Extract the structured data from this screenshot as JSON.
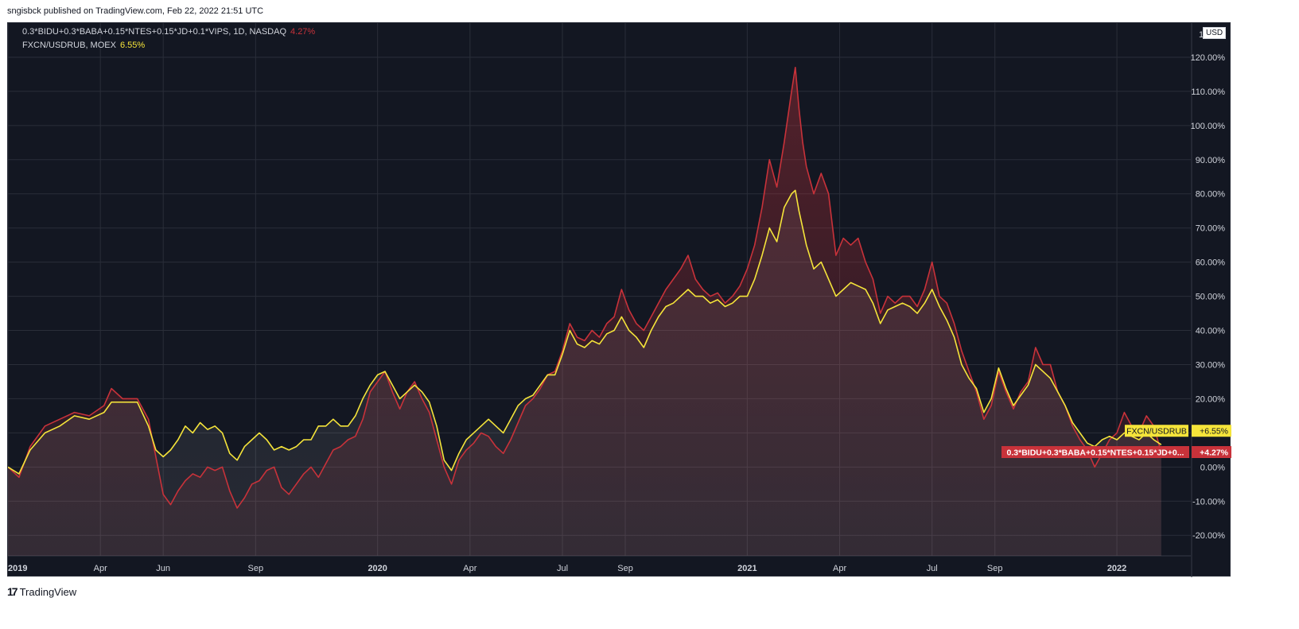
{
  "header": {
    "published_text": "sngisbck published on TradingView.com, Feb 22, 2022 21:51 UTC"
  },
  "legend": [
    {
      "label": "0.3*BIDU+0.3*BABA+0.15*NTES+0.15*JD+0.1*VIPS, 1D, NASDAQ",
      "value": "4.27%",
      "color": "#c8323a"
    },
    {
      "label": "FXCN/USDRUB, MOEX",
      "value": "6.55%",
      "color": "#f5e43a"
    }
  ],
  "price_axis": {
    "currency_button": "USD",
    "top_label": "1",
    "top_label_suffix": "%",
    "ticks": [
      "120.00%",
      "110.00%",
      "100.00%",
      "90.00%",
      "80.00%",
      "70.00%",
      "60.00%",
      "50.00%",
      "40.00%",
      "30.00%",
      "20.00%",
      "10.00%",
      "0.00%",
      "-10.00%",
      "-20.00%"
    ],
    "tick_values": [
      120,
      110,
      100,
      90,
      80,
      70,
      60,
      50,
      40,
      30,
      20,
      10,
      0,
      -10,
      -20
    ]
  },
  "badges": [
    {
      "name": "FXCN/USDRUB",
      "value": "+6.55%"
    },
    {
      "name": "0.3*BIDU+0.3*BABA+0.15*NTES+0.15*JD+0...",
      "value": "+4.27%"
    }
  ],
  "footer": {
    "brand": "TradingView",
    "logo_mark": "17"
  },
  "chart_data": {
    "type": "line",
    "ylabel_unit": "%",
    "ylim": [
      -26,
      130
    ],
    "x_ticks": [
      {
        "label": "2019",
        "t": 0.0,
        "bold": true
      },
      {
        "label": "Apr",
        "t": 0.25
      },
      {
        "label": "Jun",
        "t": 0.42
      },
      {
        "label": "Sep",
        "t": 0.67
      },
      {
        "label": "2020",
        "t": 1.0,
        "bold": true
      },
      {
        "label": "Apr",
        "t": 1.25
      },
      {
        "label": "Jul",
        "t": 1.5
      },
      {
        "label": "Sep",
        "t": 1.67
      },
      {
        "label": "2021",
        "t": 2.0,
        "bold": true
      },
      {
        "label": "Apr",
        "t": 2.25
      },
      {
        "label": "Jul",
        "t": 2.5
      },
      {
        "label": "Sep",
        "t": 2.67
      },
      {
        "label": "2022",
        "t": 3.0,
        "bold": true
      }
    ],
    "x_range": [
      0.0,
      3.2
    ],
    "series": [
      {
        "name": "0.3*BIDU+0.3*BABA+0.15*NTES+0.15*JD+0.1*VIPS",
        "color": "#c8323a",
        "points": [
          [
            0.0,
            0
          ],
          [
            0.03,
            -3
          ],
          [
            0.06,
            6
          ],
          [
            0.1,
            12
          ],
          [
            0.14,
            14
          ],
          [
            0.18,
            16
          ],
          [
            0.22,
            15
          ],
          [
            0.26,
            18
          ],
          [
            0.28,
            23
          ],
          [
            0.31,
            20
          ],
          [
            0.35,
            20
          ],
          [
            0.38,
            14
          ],
          [
            0.4,
            3
          ],
          [
            0.42,
            -8
          ],
          [
            0.44,
            -11
          ],
          [
            0.46,
            -7
          ],
          [
            0.48,
            -4
          ],
          [
            0.5,
            -2
          ],
          [
            0.52,
            -3
          ],
          [
            0.54,
            0
          ],
          [
            0.56,
            -1
          ],
          [
            0.58,
            0
          ],
          [
            0.6,
            -7
          ],
          [
            0.62,
            -12
          ],
          [
            0.64,
            -9
          ],
          [
            0.66,
            -5
          ],
          [
            0.68,
            -4
          ],
          [
            0.7,
            -1
          ],
          [
            0.72,
            0
          ],
          [
            0.74,
            -6
          ],
          [
            0.76,
            -8
          ],
          [
            0.78,
            -5
          ],
          [
            0.8,
            -2
          ],
          [
            0.82,
            0
          ],
          [
            0.84,
            -3
          ],
          [
            0.86,
            1
          ],
          [
            0.88,
            5
          ],
          [
            0.9,
            6
          ],
          [
            0.92,
            8
          ],
          [
            0.94,
            9
          ],
          [
            0.96,
            14
          ],
          [
            0.98,
            22
          ],
          [
            1.0,
            25
          ],
          [
            1.02,
            28
          ],
          [
            1.04,
            22
          ],
          [
            1.06,
            17
          ],
          [
            1.08,
            22
          ],
          [
            1.1,
            25
          ],
          [
            1.12,
            20
          ],
          [
            1.14,
            16
          ],
          [
            1.16,
            8
          ],
          [
            1.18,
            0
          ],
          [
            1.2,
            -5
          ],
          [
            1.22,
            2
          ],
          [
            1.24,
            5
          ],
          [
            1.26,
            7
          ],
          [
            1.28,
            10
          ],
          [
            1.3,
            9
          ],
          [
            1.32,
            6
          ],
          [
            1.34,
            4
          ],
          [
            1.36,
            8
          ],
          [
            1.38,
            13
          ],
          [
            1.4,
            18
          ],
          [
            1.42,
            20
          ],
          [
            1.44,
            23
          ],
          [
            1.46,
            27
          ],
          [
            1.48,
            28
          ],
          [
            1.5,
            34
          ],
          [
            1.52,
            42
          ],
          [
            1.54,
            38
          ],
          [
            1.56,
            37
          ],
          [
            1.58,
            40
          ],
          [
            1.6,
            38
          ],
          [
            1.62,
            42
          ],
          [
            1.64,
            44
          ],
          [
            1.66,
            52
          ],
          [
            1.68,
            46
          ],
          [
            1.7,
            42
          ],
          [
            1.72,
            40
          ],
          [
            1.74,
            44
          ],
          [
            1.76,
            48
          ],
          [
            1.78,
            52
          ],
          [
            1.8,
            55
          ],
          [
            1.82,
            58
          ],
          [
            1.84,
            62
          ],
          [
            1.86,
            55
          ],
          [
            1.88,
            52
          ],
          [
            1.9,
            50
          ],
          [
            1.92,
            51
          ],
          [
            1.94,
            48
          ],
          [
            1.96,
            50
          ],
          [
            1.98,
            53
          ],
          [
            2.0,
            58
          ],
          [
            2.02,
            65
          ],
          [
            2.04,
            76
          ],
          [
            2.06,
            90
          ],
          [
            2.08,
            82
          ],
          [
            2.1,
            95
          ],
          [
            2.12,
            110
          ],
          [
            2.13,
            117
          ],
          [
            2.14,
            105
          ],
          [
            2.15,
            95
          ],
          [
            2.16,
            88
          ],
          [
            2.18,
            80
          ],
          [
            2.2,
            86
          ],
          [
            2.22,
            80
          ],
          [
            2.24,
            62
          ],
          [
            2.26,
            67
          ],
          [
            2.28,
            65
          ],
          [
            2.3,
            67
          ],
          [
            2.32,
            60
          ],
          [
            2.34,
            55
          ],
          [
            2.36,
            45
          ],
          [
            2.38,
            50
          ],
          [
            2.4,
            48
          ],
          [
            2.42,
            50
          ],
          [
            2.44,
            50
          ],
          [
            2.46,
            47
          ],
          [
            2.48,
            52
          ],
          [
            2.5,
            60
          ],
          [
            2.52,
            50
          ],
          [
            2.54,
            48
          ],
          [
            2.56,
            42
          ],
          [
            2.58,
            34
          ],
          [
            2.6,
            28
          ],
          [
            2.62,
            22
          ],
          [
            2.64,
            14
          ],
          [
            2.66,
            18
          ],
          [
            2.68,
            28
          ],
          [
            2.7,
            22
          ],
          [
            2.72,
            17
          ],
          [
            2.74,
            22
          ],
          [
            2.76,
            25
          ],
          [
            2.78,
            35
          ],
          [
            2.8,
            30
          ],
          [
            2.82,
            30
          ],
          [
            2.84,
            22
          ],
          [
            2.86,
            18
          ],
          [
            2.88,
            12
          ],
          [
            2.9,
            8
          ],
          [
            2.92,
            5
          ],
          [
            2.94,
            0
          ],
          [
            2.96,
            4
          ],
          [
            2.98,
            8
          ],
          [
            3.0,
            10
          ],
          [
            3.02,
            16
          ],
          [
            3.04,
            12
          ],
          [
            3.06,
            10
          ],
          [
            3.08,
            15
          ],
          [
            3.1,
            12
          ],
          [
            3.12,
            4.27
          ]
        ]
      },
      {
        "name": "FXCN/USDRUB",
        "color": "#f5e43a",
        "points": [
          [
            0.0,
            0
          ],
          [
            0.03,
            -2
          ],
          [
            0.06,
            5
          ],
          [
            0.1,
            10
          ],
          [
            0.14,
            12
          ],
          [
            0.18,
            15
          ],
          [
            0.22,
            14
          ],
          [
            0.26,
            16
          ],
          [
            0.28,
            19
          ],
          [
            0.31,
            19
          ],
          [
            0.35,
            19
          ],
          [
            0.38,
            12
          ],
          [
            0.4,
            5
          ],
          [
            0.42,
            3
          ],
          [
            0.44,
            5
          ],
          [
            0.46,
            8
          ],
          [
            0.48,
            12
          ],
          [
            0.5,
            10
          ],
          [
            0.52,
            13
          ],
          [
            0.54,
            11
          ],
          [
            0.56,
            12
          ],
          [
            0.58,
            10
          ],
          [
            0.6,
            4
          ],
          [
            0.62,
            2
          ],
          [
            0.64,
            6
          ],
          [
            0.66,
            8
          ],
          [
            0.68,
            10
          ],
          [
            0.7,
            8
          ],
          [
            0.72,
            5
          ],
          [
            0.74,
            6
          ],
          [
            0.76,
            5
          ],
          [
            0.78,
            6
          ],
          [
            0.8,
            8
          ],
          [
            0.82,
            8
          ],
          [
            0.84,
            12
          ],
          [
            0.86,
            12
          ],
          [
            0.88,
            14
          ],
          [
            0.9,
            12
          ],
          [
            0.92,
            12
          ],
          [
            0.94,
            15
          ],
          [
            0.96,
            20
          ],
          [
            0.98,
            24
          ],
          [
            1.0,
            27
          ],
          [
            1.02,
            28
          ],
          [
            1.04,
            24
          ],
          [
            1.06,
            20
          ],
          [
            1.08,
            22
          ],
          [
            1.1,
            24
          ],
          [
            1.12,
            22
          ],
          [
            1.14,
            19
          ],
          [
            1.16,
            12
          ],
          [
            1.18,
            2
          ],
          [
            1.2,
            -1
          ],
          [
            1.22,
            4
          ],
          [
            1.24,
            8
          ],
          [
            1.26,
            10
          ],
          [
            1.28,
            12
          ],
          [
            1.3,
            14
          ],
          [
            1.32,
            12
          ],
          [
            1.34,
            10
          ],
          [
            1.36,
            14
          ],
          [
            1.38,
            18
          ],
          [
            1.4,
            20
          ],
          [
            1.42,
            21
          ],
          [
            1.44,
            24
          ],
          [
            1.46,
            27
          ],
          [
            1.48,
            27
          ],
          [
            1.5,
            33
          ],
          [
            1.52,
            40
          ],
          [
            1.54,
            36
          ],
          [
            1.56,
            35
          ],
          [
            1.58,
            37
          ],
          [
            1.6,
            36
          ],
          [
            1.62,
            39
          ],
          [
            1.64,
            40
          ],
          [
            1.66,
            44
          ],
          [
            1.68,
            40
          ],
          [
            1.7,
            38
          ],
          [
            1.72,
            35
          ],
          [
            1.74,
            40
          ],
          [
            1.76,
            44
          ],
          [
            1.78,
            47
          ],
          [
            1.8,
            48
          ],
          [
            1.82,
            50
          ],
          [
            1.84,
            52
          ],
          [
            1.86,
            50
          ],
          [
            1.88,
            50
          ],
          [
            1.9,
            48
          ],
          [
            1.92,
            49
          ],
          [
            1.94,
            47
          ],
          [
            1.96,
            48
          ],
          [
            1.98,
            50
          ],
          [
            2.0,
            50
          ],
          [
            2.02,
            55
          ],
          [
            2.04,
            62
          ],
          [
            2.06,
            70
          ],
          [
            2.08,
            66
          ],
          [
            2.1,
            76
          ],
          [
            2.12,
            80
          ],
          [
            2.13,
            81
          ],
          [
            2.14,
            75
          ],
          [
            2.15,
            70
          ],
          [
            2.16,
            65
          ],
          [
            2.18,
            58
          ],
          [
            2.2,
            60
          ],
          [
            2.22,
            55
          ],
          [
            2.24,
            50
          ],
          [
            2.26,
            52
          ],
          [
            2.28,
            54
          ],
          [
            2.3,
            53
          ],
          [
            2.32,
            52
          ],
          [
            2.34,
            48
          ],
          [
            2.36,
            42
          ],
          [
            2.38,
            46
          ],
          [
            2.4,
            47
          ],
          [
            2.42,
            48
          ],
          [
            2.44,
            47
          ],
          [
            2.46,
            45
          ],
          [
            2.48,
            48
          ],
          [
            2.5,
            52
          ],
          [
            2.52,
            47
          ],
          [
            2.54,
            43
          ],
          [
            2.56,
            38
          ],
          [
            2.58,
            30
          ],
          [
            2.6,
            26
          ],
          [
            2.62,
            23
          ],
          [
            2.64,
            16
          ],
          [
            2.66,
            20
          ],
          [
            2.68,
            29
          ],
          [
            2.7,
            23
          ],
          [
            2.72,
            18
          ],
          [
            2.74,
            21
          ],
          [
            2.76,
            24
          ],
          [
            2.78,
            30
          ],
          [
            2.8,
            28
          ],
          [
            2.82,
            26
          ],
          [
            2.84,
            22
          ],
          [
            2.86,
            18
          ],
          [
            2.88,
            13
          ],
          [
            2.9,
            10
          ],
          [
            2.92,
            7
          ],
          [
            2.94,
            6
          ],
          [
            2.96,
            8
          ],
          [
            2.98,
            9
          ],
          [
            3.0,
            8
          ],
          [
            3.02,
            10
          ],
          [
            3.04,
            9
          ],
          [
            3.06,
            8
          ],
          [
            3.08,
            10
          ],
          [
            3.1,
            8
          ],
          [
            3.12,
            6.55
          ]
        ]
      }
    ]
  }
}
